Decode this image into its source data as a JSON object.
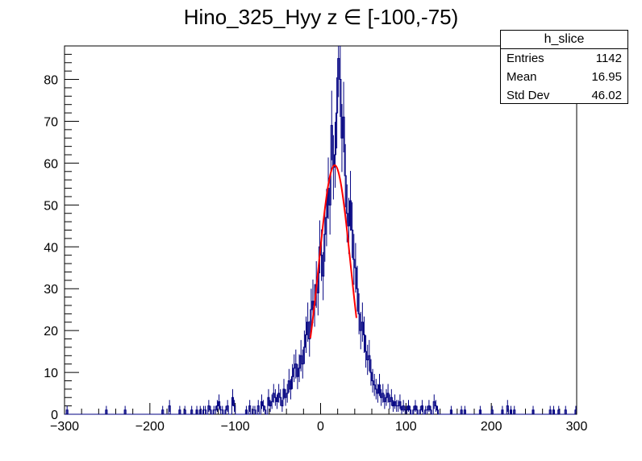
{
  "title": "Hino_325_Hyy z  ∈ [-100,-75)",
  "stats": {
    "name": "h_slice",
    "rows": [
      {
        "label": "Entries",
        "value": "1142"
      },
      {
        "label": "Mean",
        "value": "16.95"
      },
      {
        "label": "Std Dev",
        "value": "46.02"
      }
    ]
  },
  "chart_data": {
    "type": "bar",
    "title": "Hino_325_Hyy z  ∈ [-100,-75)",
    "xlabel": "",
    "ylabel": "",
    "xlim": [
      -300,
      300
    ],
    "ylim": [
      0,
      88
    ],
    "x_ticks": [
      -300,
      -200,
      -100,
      0,
      100,
      200,
      300
    ],
    "y_ticks": [
      0,
      10,
      20,
      30,
      40,
      50,
      60,
      70,
      80
    ],
    "histogram": {
      "bin_width": 2,
      "bins": [
        [
          -298,
          1
        ],
        [
          -252,
          1
        ],
        [
          -230,
          1
        ],
        [
          -186,
          1
        ],
        [
          -178,
          2
        ],
        [
          -166,
          1
        ],
        [
          -160,
          1
        ],
        [
          -152,
          1
        ],
        [
          -146,
          1
        ],
        [
          -142,
          1
        ],
        [
          -138,
          1
        ],
        [
          -136,
          1
        ],
        [
          -132,
          2
        ],
        [
          -130,
          1
        ],
        [
          -126,
          1
        ],
        [
          -124,
          1
        ],
        [
          -122,
          2
        ],
        [
          -120,
          3
        ],
        [
          -118,
          1
        ],
        [
          -116,
          1
        ],
        [
          -112,
          1
        ],
        [
          -110,
          2
        ],
        [
          -104,
          4
        ],
        [
          -102,
          2
        ],
        [
          -88,
          1
        ],
        [
          -84,
          2
        ],
        [
          -80,
          1
        ],
        [
          -78,
          1
        ],
        [
          -74,
          2
        ],
        [
          -70,
          3
        ],
        [
          -68,
          2
        ],
        [
          -66,
          1
        ],
        [
          -62,
          4
        ],
        [
          -60,
          2
        ],
        [
          -58,
          3
        ],
        [
          -56,
          5
        ],
        [
          -54,
          4
        ],
        [
          -52,
          3
        ],
        [
          -50,
          5
        ],
        [
          -48,
          4
        ],
        [
          -46,
          2
        ],
        [
          -44,
          6
        ],
        [
          -42,
          4
        ],
        [
          -40,
          5
        ],
        [
          -38,
          8
        ],
        [
          -36,
          6
        ],
        [
          -34,
          9
        ],
        [
          -32,
          11
        ],
        [
          -30,
          12
        ],
        [
          -28,
          9
        ],
        [
          -26,
          11
        ],
        [
          -24,
          14
        ],
        [
          -22,
          12
        ],
        [
          -20,
          16
        ],
        [
          -18,
          19
        ],
        [
          -16,
          22
        ],
        [
          -14,
          18
        ],
        [
          -12,
          25
        ],
        [
          -10,
          27
        ],
        [
          -8,
          26
        ],
        [
          -6,
          31
        ],
        [
          -4,
          29
        ],
        [
          -2,
          40
        ],
        [
          0,
          38
        ],
        [
          2,
          33
        ],
        [
          4,
          43
        ],
        [
          6,
          47
        ],
        [
          8,
          54
        ],
        [
          10,
          50
        ],
        [
          12,
          69
        ],
        [
          14,
          59
        ],
        [
          16,
          62
        ],
        [
          18,
          72
        ],
        [
          20,
          85
        ],
        [
          22,
          80
        ],
        [
          24,
          66
        ],
        [
          26,
          71
        ],
        [
          28,
          57
        ],
        [
          30,
          48
        ],
        [
          32,
          45
        ],
        [
          34,
          51
        ],
        [
          36,
          44
        ],
        [
          38,
          37
        ],
        [
          40,
          35
        ],
        [
          42,
          30
        ],
        [
          44,
          24
        ],
        [
          46,
          20
        ],
        [
          48,
          22
        ],
        [
          50,
          19
        ],
        [
          52,
          15
        ],
        [
          54,
          13
        ],
        [
          56,
          14
        ],
        [
          58,
          10
        ],
        [
          60,
          8
        ],
        [
          62,
          7
        ],
        [
          64,
          6
        ],
        [
          66,
          5
        ],
        [
          68,
          7
        ],
        [
          70,
          4
        ],
        [
          72,
          5
        ],
        [
          74,
          3
        ],
        [
          76,
          4
        ],
        [
          78,
          5
        ],
        [
          80,
          3
        ],
        [
          82,
          4
        ],
        [
          84,
          2
        ],
        [
          86,
          3
        ],
        [
          88,
          2
        ],
        [
          90,
          2
        ],
        [
          92,
          3
        ],
        [
          94,
          1
        ],
        [
          96,
          2
        ],
        [
          98,
          1
        ],
        [
          100,
          1
        ],
        [
          102,
          2
        ],
        [
          104,
          1
        ],
        [
          108,
          1
        ],
        [
          110,
          2
        ],
        [
          112,
          1
        ],
        [
          116,
          1
        ],
        [
          118,
          2
        ],
        [
          122,
          1
        ],
        [
          124,
          1
        ],
        [
          126,
          2
        ],
        [
          128,
          1
        ],
        [
          132,
          3
        ],
        [
          134,
          2
        ],
        [
          136,
          1
        ],
        [
          152,
          1
        ],
        [
          164,
          1
        ],
        [
          168,
          1
        ],
        [
          186,
          1
        ],
        [
          200,
          1
        ],
        [
          212,
          1
        ],
        [
          218,
          2
        ],
        [
          222,
          1
        ],
        [
          226,
          1
        ],
        [
          248,
          1
        ],
        [
          268,
          1
        ],
        [
          272,
          1
        ],
        [
          278,
          1
        ],
        [
          286,
          1
        ],
        [
          298,
          1
        ]
      ]
    },
    "fit": {
      "type": "gaussian",
      "constant": 59.5,
      "mean": 16.5,
      "sigma": 18.5,
      "range": [
        -12,
        42
      ],
      "color": "#ff0000"
    },
    "line_color": "#000080",
    "grid": false,
    "legend": "top-right stats box"
  }
}
